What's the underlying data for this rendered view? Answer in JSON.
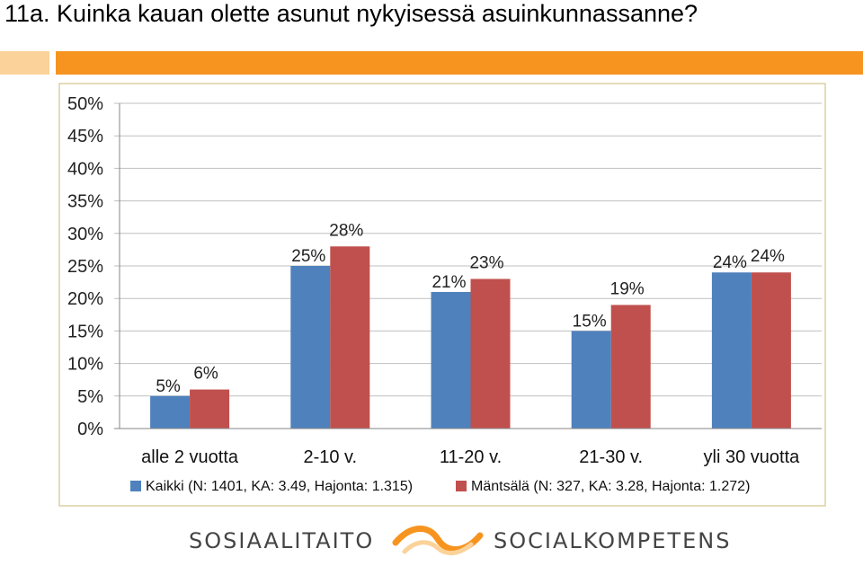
{
  "title": "11a. Kuinka kauan olette asunut nykyisessä asuinkunnassanne?",
  "colors": {
    "series1": "#4f81bd",
    "series2": "#c0504d",
    "accent_orange": "#f79420",
    "accent_orange_light": "#fbd29a",
    "plot_border": "#d4c58a"
  },
  "chart_data": {
    "type": "bar",
    "categories": [
      "alle 2 vuotta",
      "2-10 v.",
      "11-20 v.",
      "21-30 v.",
      "yli 30 vuotta"
    ],
    "series": [
      {
        "name": "Kaikki (N: 1401, KA: 3.49, Hajonta: 1.315)",
        "values": [
          5,
          25,
          21,
          15,
          24
        ],
        "labels": [
          "5%",
          "25%",
          "21%",
          "15%",
          "24%"
        ]
      },
      {
        "name": "Mäntsälä (N: 327, KA: 3.28, Hajonta: 1.272)",
        "values": [
          6,
          28,
          23,
          19,
          24
        ],
        "labels": [
          "6%",
          "28%",
          "23%",
          "19%",
          "24%"
        ]
      }
    ],
    "ylim": [
      0,
      50
    ],
    "yticks": [
      "0%",
      "5%",
      "10%",
      "15%",
      "20%",
      "25%",
      "30%",
      "35%",
      "40%",
      "45%",
      "50%"
    ],
    "grid": true,
    "legend_position": "bottom"
  },
  "logo": {
    "left_text": "SOSIAALITAITO",
    "right_text": "SOCIALKOMPETENS"
  }
}
